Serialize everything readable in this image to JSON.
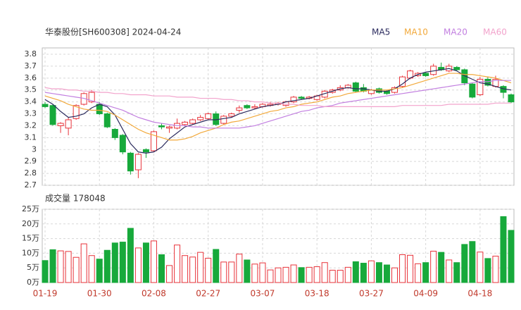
{
  "chart_data": [
    {
      "type": "candlestick",
      "title": "华泰股份[SH600308] 2024-04-24",
      "up_color": "#e8333a",
      "down_color": "#17a93b",
      "open": [
        3.38,
        3.37,
        3.2,
        3.18,
        3.26,
        3.38,
        3.4,
        3.38,
        3.3,
        3.17,
        3.12,
        2.97,
        2.83,
        3.0,
        2.99,
        3.2,
        3.18,
        3.18,
        3.21,
        3.22,
        3.25,
        3.26,
        3.3,
        3.22,
        3.28,
        3.33,
        3.37,
        3.35,
        3.36,
        3.37,
        3.38,
        3.37,
        3.4,
        3.44,
        3.43,
        3.42,
        3.44,
        3.48,
        3.5,
        3.52,
        3.56,
        3.52,
        3.47,
        3.51,
        3.49,
        3.48,
        3.53,
        3.6,
        3.62,
        3.64,
        3.63,
        3.69,
        3.66,
        3.69,
        3.67,
        3.55,
        3.46,
        3.59,
        3.53,
        3.53,
        3.46
      ],
      "high": [
        3.4,
        3.38,
        3.23,
        3.27,
        3.38,
        3.48,
        3.5,
        3.4,
        3.31,
        3.18,
        3.13,
        2.98,
        2.97,
        3.01,
        3.16,
        3.22,
        3.2,
        3.26,
        3.24,
        3.26,
        3.29,
        3.31,
        3.32,
        3.29,
        3.31,
        3.37,
        3.38,
        3.38,
        3.39,
        3.4,
        3.4,
        3.41,
        3.45,
        3.45,
        3.45,
        3.46,
        3.5,
        3.51,
        3.54,
        3.55,
        3.57,
        3.55,
        3.51,
        3.52,
        3.5,
        3.53,
        3.62,
        3.67,
        3.65,
        3.65,
        3.72,
        3.73,
        3.72,
        3.7,
        3.68,
        3.56,
        3.61,
        3.61,
        3.62,
        3.54,
        3.47
      ],
      "low": [
        3.35,
        3.2,
        3.14,
        3.12,
        3.25,
        3.37,
        3.39,
        3.29,
        3.18,
        3.08,
        2.96,
        2.79,
        2.76,
        2.93,
        2.98,
        3.17,
        3.14,
        3.17,
        3.2,
        3.21,
        3.24,
        3.25,
        3.2,
        3.21,
        3.27,
        3.31,
        3.34,
        3.34,
        3.35,
        3.36,
        3.37,
        3.36,
        3.39,
        3.42,
        3.42,
        3.41,
        3.43,
        3.47,
        3.49,
        3.51,
        3.48,
        3.48,
        3.46,
        3.47,
        3.46,
        3.47,
        3.52,
        3.59,
        3.61,
        3.61,
        3.62,
        3.66,
        3.65,
        3.66,
        3.54,
        3.43,
        3.45,
        3.53,
        3.52,
        3.43,
        3.39
      ],
      "close": [
        3.36,
        3.21,
        3.22,
        3.25,
        3.37,
        3.47,
        3.48,
        3.3,
        3.19,
        3.1,
        2.98,
        2.82,
        2.96,
        2.98,
        3.15,
        3.19,
        3.19,
        3.22,
        3.23,
        3.25,
        3.27,
        3.3,
        3.21,
        3.28,
        3.3,
        3.35,
        3.35,
        3.36,
        3.38,
        3.38,
        3.39,
        3.4,
        3.44,
        3.43,
        3.44,
        3.45,
        3.49,
        3.5,
        3.52,
        3.54,
        3.49,
        3.49,
        3.5,
        3.48,
        3.47,
        3.52,
        3.61,
        3.66,
        3.64,
        3.62,
        3.7,
        3.67,
        3.7,
        3.67,
        3.56,
        3.44,
        3.59,
        3.54,
        3.59,
        3.48,
        3.4
      ],
      "series": [
        {
          "name": "MA5",
          "color": "#2b2b5e",
          "values": [
            3.42,
            3.38,
            3.32,
            3.27,
            3.28,
            3.3,
            3.35,
            3.38,
            3.36,
            3.29,
            3.17,
            3.05,
            2.98,
            2.97,
            2.98,
            3.02,
            3.09,
            3.14,
            3.19,
            3.21,
            3.23,
            3.25,
            3.25,
            3.26,
            3.27,
            3.3,
            3.32,
            3.34,
            3.36,
            3.37,
            3.38,
            3.4,
            3.41,
            3.42,
            3.43,
            3.45,
            3.47,
            3.49,
            3.51,
            3.52,
            3.51,
            3.51,
            3.5,
            3.49,
            3.49,
            3.51,
            3.55,
            3.6,
            3.63,
            3.65,
            3.66,
            3.67,
            3.68,
            3.66,
            3.62,
            3.59,
            3.56,
            3.55,
            3.53,
            3.51,
            3.5
          ]
        },
        {
          "name": "MA10",
          "color": "#f2a93b",
          "values": [
            3.45,
            3.43,
            3.41,
            3.38,
            3.36,
            3.34,
            3.33,
            3.33,
            3.32,
            3.29,
            3.25,
            3.21,
            3.17,
            3.14,
            3.12,
            3.1,
            3.08,
            3.08,
            3.09,
            3.11,
            3.14,
            3.16,
            3.18,
            3.21,
            3.23,
            3.24,
            3.26,
            3.28,
            3.3,
            3.32,
            3.33,
            3.35,
            3.36,
            3.38,
            3.39,
            3.4,
            3.42,
            3.44,
            3.45,
            3.47,
            3.48,
            3.49,
            3.5,
            3.5,
            3.5,
            3.51,
            3.52,
            3.54,
            3.56,
            3.58,
            3.6,
            3.62,
            3.64,
            3.64,
            3.63,
            3.63,
            3.62,
            3.61,
            3.6,
            3.58,
            3.56
          ]
        },
        {
          "name": "MA20",
          "color": "#c27fe0",
          "values": [
            3.48,
            3.47,
            3.46,
            3.45,
            3.44,
            3.43,
            3.41,
            3.39,
            3.37,
            3.35,
            3.33,
            3.3,
            3.27,
            3.25,
            3.23,
            3.22,
            3.21,
            3.2,
            3.2,
            3.19,
            3.19,
            3.18,
            3.18,
            3.18,
            3.18,
            3.18,
            3.19,
            3.2,
            3.22,
            3.24,
            3.26,
            3.28,
            3.3,
            3.32,
            3.33,
            3.35,
            3.36,
            3.37,
            3.39,
            3.4,
            3.41,
            3.42,
            3.43,
            3.44,
            3.45,
            3.46,
            3.47,
            3.48,
            3.49,
            3.5,
            3.51,
            3.52,
            3.53,
            3.54,
            3.55,
            3.56,
            3.57,
            3.57,
            3.58,
            3.58,
            3.58
          ]
        },
        {
          "name": "MA60",
          "color": "#f2a3cc",
          "values": [
            3.52,
            3.51,
            3.51,
            3.5,
            3.5,
            3.49,
            3.49,
            3.48,
            3.48,
            3.47,
            3.47,
            3.46,
            3.46,
            3.46,
            3.45,
            3.45,
            3.45,
            3.44,
            3.44,
            3.44,
            3.43,
            3.43,
            3.43,
            3.42,
            3.42,
            3.41,
            3.41,
            3.4,
            3.4,
            3.39,
            3.39,
            3.38,
            3.38,
            3.37,
            3.37,
            3.37,
            3.36,
            3.36,
            3.36,
            3.36,
            3.36,
            3.36,
            3.36,
            3.36,
            3.36,
            3.36,
            3.37,
            3.37,
            3.37,
            3.37,
            3.37,
            3.37,
            3.38,
            3.38,
            3.38,
            3.38,
            3.38,
            3.38,
            3.39,
            3.39,
            3.39
          ]
        }
      ],
      "ylim": [
        2.7,
        3.8
      ],
      "yticks": [
        2.7,
        2.8,
        2.9,
        3,
        3.1,
        3.2,
        3.3,
        3.4,
        3.5,
        3.6,
        3.7,
        3.8
      ],
      "grid": true
    },
    {
      "type": "bar",
      "title": "成交量 178048",
      "categories": [
        "01-19",
        null,
        null,
        null,
        null,
        null,
        null,
        "01-30",
        null,
        null,
        null,
        null,
        null,
        null,
        "02-08",
        null,
        null,
        null,
        null,
        null,
        null,
        "02-27",
        null,
        null,
        null,
        null,
        null,
        null,
        "03-07",
        null,
        null,
        null,
        null,
        null,
        null,
        "03-18",
        null,
        null,
        null,
        null,
        null,
        null,
        "03-27",
        null,
        null,
        null,
        null,
        null,
        null,
        "04-09",
        null,
        null,
        null,
        null,
        null,
        null,
        "04-18",
        null,
        null,
        null,
        null
      ],
      "values": [
        7.5,
        11.2,
        10.8,
        10.6,
        8.6,
        13.2,
        9.2,
        8,
        11,
        13.5,
        13.8,
        18.5,
        11.8,
        13.5,
        14.2,
        9.5,
        5.8,
        12.8,
        9.2,
        8.7,
        10.3,
        8.3,
        11.3,
        7,
        7,
        9.7,
        7.7,
        6.3,
        6.7,
        4.3,
        5,
        5.2,
        6,
        5.1,
        5.2,
        5.4,
        6.8,
        4.2,
        4.2,
        5.2,
        7.1,
        6.6,
        7.4,
        6.8,
        6,
        5,
        9.5,
        9.3,
        6.4,
        6.8,
        10.7,
        10.3,
        7.7,
        6.8,
        13,
        14,
        10.4,
        8.2,
        9,
        22.5,
        17.8048
      ],
      "ylim": [
        0,
        25
      ],
      "yticks": [
        {
          "value": 0,
          "label": "0万"
        },
        {
          "value": 5,
          "label": "5万"
        },
        {
          "value": 10,
          "label": "10万"
        },
        {
          "value": 15,
          "label": "15万"
        },
        {
          "value": 20,
          "label": "20万"
        },
        {
          "value": 25,
          "label": "25万"
        }
      ],
      "grid": true
    }
  ]
}
